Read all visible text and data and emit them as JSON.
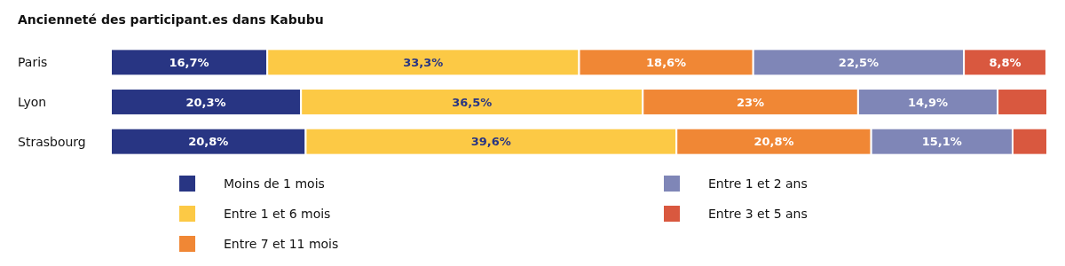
{
  "chart_data": {
    "type": "bar",
    "title": "Ancienneté des participant.es dans Kabubu",
    "orientation": "horizontal",
    "stacked": true,
    "categories": [
      "Paris",
      "Lyon",
      "Strasbourg"
    ],
    "tick_labels": "y",
    "legend": "bottom",
    "series": [
      {
        "name": "Moins de 1 mois",
        "color": "#283583",
        "values": [
          16.7,
          20.3,
          20.8
        ],
        "value_labels": [
          "16,7%",
          "20,3%",
          "20,8%"
        ]
      },
      {
        "name": "Entre 1 et 6 mois",
        "color": "#fcc945",
        "values": [
          33.3,
          36.5,
          39.6
        ],
        "value_labels": [
          "33,3%",
          "36,5%",
          "39,6%"
        ]
      },
      {
        "name": "Entre 7 et 11 mois",
        "color": "#f08735",
        "values": [
          18.6,
          23,
          20.8
        ],
        "value_labels": [
          "18,6%",
          "23%",
          "20,8%"
        ]
      },
      {
        "name": "Entre 1 et 2 ans",
        "color": "#7f86b7",
        "values": [
          22.5,
          14.9,
          15.1
        ],
        "value_labels": [
          "22,5%",
          "14,9%",
          "15,1%"
        ]
      },
      {
        "name": "Entre 3 et 5 ans",
        "color": "#d9583f",
        "values": [
          8.8,
          5.3,
          3.7
        ],
        "value_labels": [
          "8,8%",
          null,
          null
        ]
      }
    ]
  }
}
